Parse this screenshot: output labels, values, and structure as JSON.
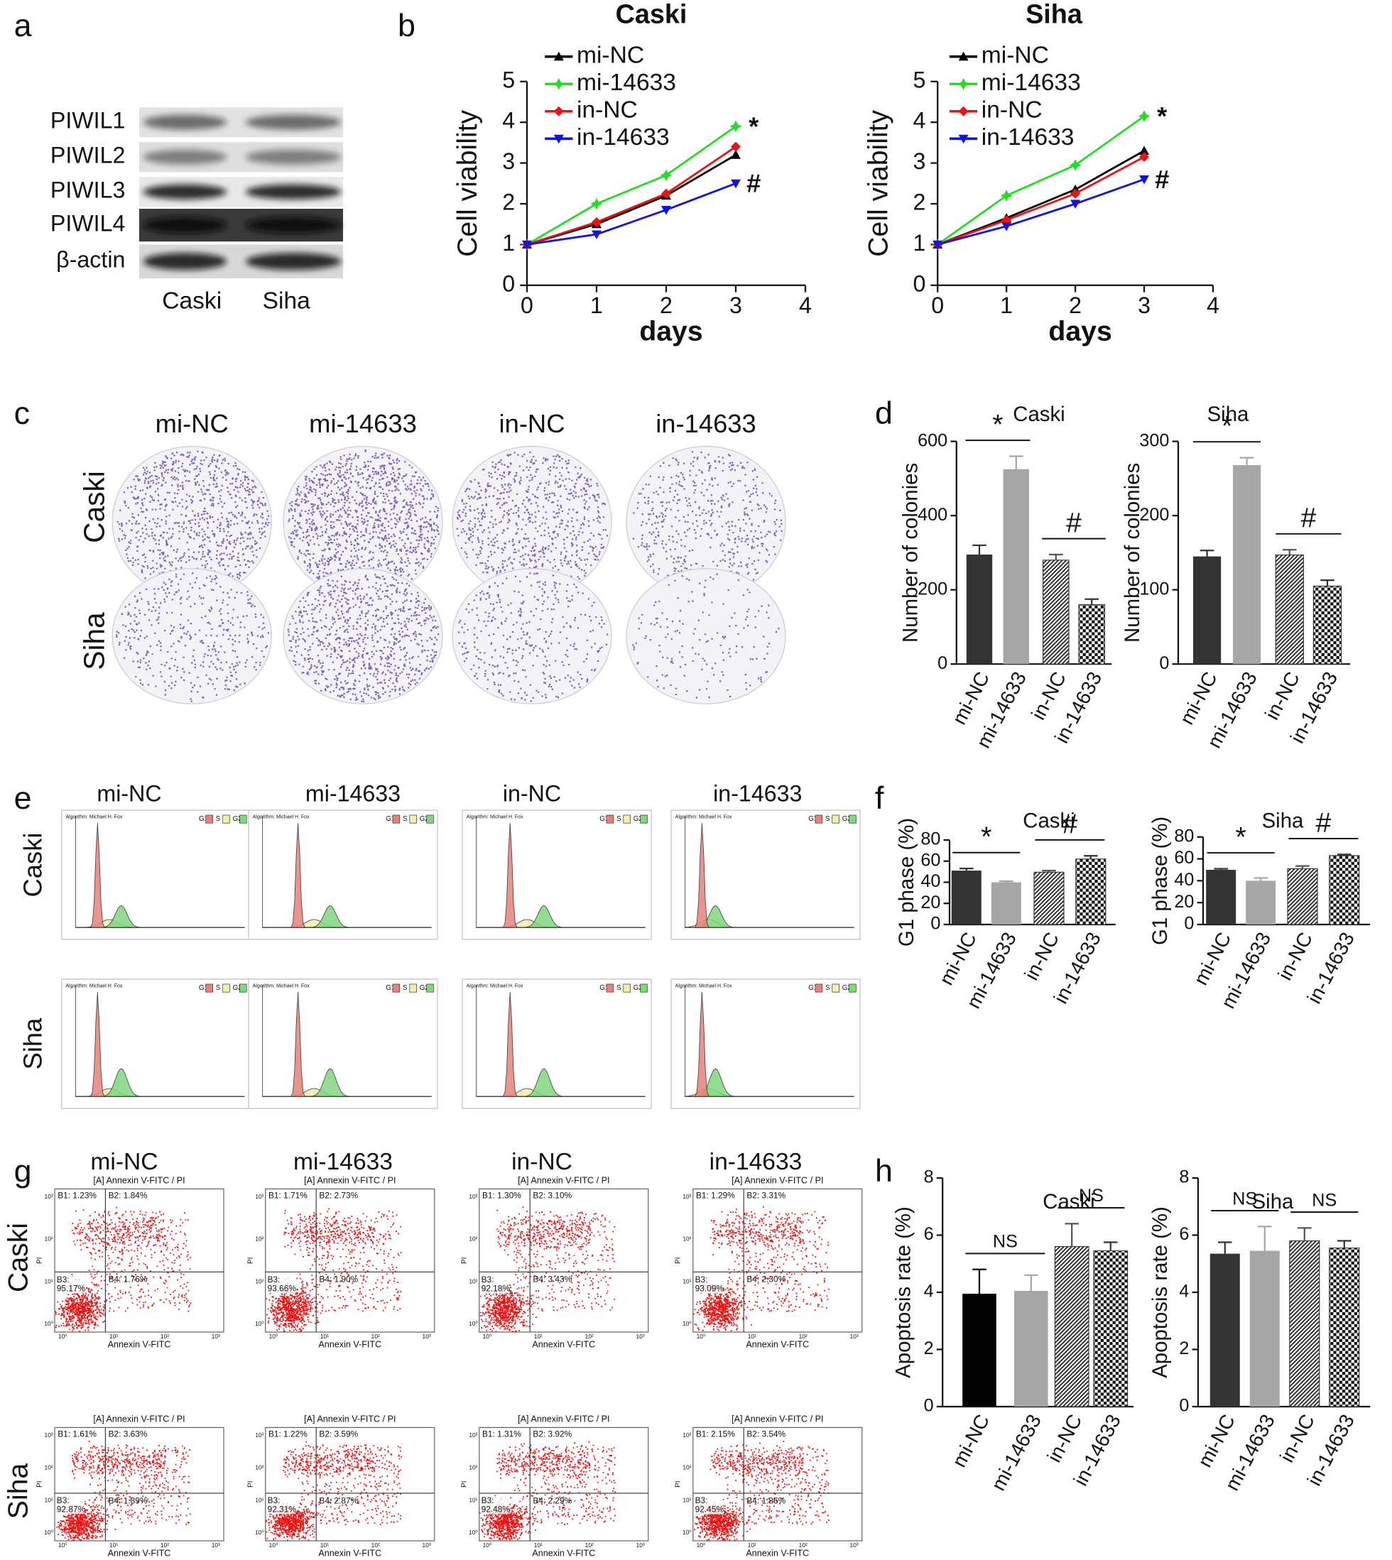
{
  "figure": {
    "panel_labels": [
      "a",
      "b",
      "c",
      "d",
      "e",
      "f",
      "g",
      "h"
    ],
    "western_blot": {
      "proteins": [
        "PIWIL1",
        "PIWIL2",
        "PIWIL3",
        "PIWIL4",
        "β-actin"
      ],
      "lanes": [
        "Caski",
        "Siha"
      ]
    },
    "colony_images": {
      "columns": [
        "mi-NC",
        "mi-14633",
        "in-NC",
        "in-14633"
      ],
      "rows": [
        "Caski",
        "Siha"
      ]
    },
    "cell_cycle_histograms": {
      "columns": [
        "mi-NC",
        "mi-14633",
        "in-NC",
        "in-14633"
      ],
      "rows": [
        "Caski",
        "Siha"
      ],
      "algorithm": "Algorithm: Michael H. Fox",
      "legend": [
        "G1",
        "S",
        "G2"
      ]
    },
    "apoptosis_plots": {
      "columns": [
        "mi-NC",
        "mi-14633",
        "in-NC",
        "in-14633"
      ],
      "rows": [
        "Caski",
        "Siha"
      ],
      "title": "[A] Annexin V-FITC / PI",
      "x_label": "Annexin V-FITC",
      "y_label": "PI",
      "axis_ticks": [
        "10⁰",
        "10¹",
        "10²",
        "10³"
      ],
      "quadrants": [
        [
          [
            "B1: 1.23%",
            "B2: 1.84%",
            "B3: 95.17%",
            "B4: 1.76%"
          ],
          [
            "B1: 1.71%",
            "B2: 2.73%",
            "B3: 93.66%",
            "B4: 1.90%"
          ],
          [
            "B1: 1.30%",
            "B2: 3.10%",
            "B3: 92.18%",
            "B4: 3.43%"
          ],
          [
            "B1: 1.29%",
            "B2: 3.31%",
            "B3: 93.09%",
            "B4: 2.30%"
          ]
        ],
        [
          [
            "B1: 1.61%",
            "B2: 3.63%",
            "B3: 92.87%",
            "B4: 1.89%"
          ],
          [
            "B1: 1.22%",
            "B2: 3.59%",
            "B3: 92.31%",
            "B4: 2.87%"
          ],
          [
            "B1: 1.31%",
            "B2: 3.92%",
            "B3: 92.48%",
            "B4: 2.29%"
          ],
          [
            "B1: 2.15%",
            "B2: 3.54%",
            "B3: 92.45%",
            "B4: 1.86%"
          ]
        ]
      ]
    }
  },
  "chart_data": [
    {
      "type": "line",
      "title": "Caski",
      "x_label": "days",
      "y_label": "Cell viability",
      "x": [
        0,
        1,
        2,
        3
      ],
      "xlim": [
        0,
        4
      ],
      "xticks": [
        0,
        1,
        2,
        3,
        4
      ],
      "ylim": [
        0,
        5
      ],
      "yticks": [
        0,
        1,
        2,
        3,
        4,
        5
      ],
      "series": [
        {
          "name": "mi-NC",
          "color": "#000000",
          "marker": "triangle-up",
          "values": [
            1,
            1.5,
            2.2,
            3.2
          ]
        },
        {
          "name": "mi-14633",
          "color": "#22dd22",
          "marker": "star",
          "values": [
            1,
            2,
            2.7,
            3.9
          ]
        },
        {
          "name": "in-NC",
          "color": "#ee1111",
          "marker": "diamond",
          "values": [
            1,
            1.55,
            2.25,
            3.4
          ]
        },
        {
          "name": "in-14633",
          "color": "#1111ee",
          "marker": "triangle-down",
          "values": [
            1,
            1.25,
            1.85,
            2.5
          ]
        }
      ],
      "annotations": [
        "*",
        "#"
      ]
    },
    {
      "type": "line",
      "title": "Siha",
      "x_label": "days",
      "y_label": "Cell viability",
      "x": [
        0,
        1,
        2,
        3
      ],
      "xlim": [
        0,
        4
      ],
      "xticks": [
        0,
        1,
        2,
        3,
        4
      ],
      "ylim": [
        0,
        5
      ],
      "yticks": [
        0,
        1,
        2,
        3,
        4,
        5
      ],
      "series": [
        {
          "name": "mi-NC",
          "color": "#000000",
          "marker": "triangle-up",
          "values": [
            1,
            1.65,
            2.35,
            3.3
          ]
        },
        {
          "name": "mi-14633",
          "color": "#22dd22",
          "marker": "star",
          "values": [
            1,
            2.2,
            2.95,
            4.15
          ]
        },
        {
          "name": "in-NC",
          "color": "#ee1111",
          "marker": "diamond",
          "values": [
            1,
            1.6,
            2.25,
            3.15
          ]
        },
        {
          "name": "in-14633",
          "color": "#1111ee",
          "marker": "triangle-down",
          "values": [
            1,
            1.45,
            2.0,
            2.6
          ]
        }
      ],
      "annotations": [
        "*",
        "#"
      ]
    },
    {
      "type": "bar",
      "title": "Caski",
      "y_label": "Number of colonies",
      "categories": [
        "mi-NC",
        "mi-14633",
        "in-NC",
        "in-14633"
      ],
      "values": [
        295,
        525,
        280,
        160
      ],
      "errors": [
        25,
        35,
        15,
        15
      ],
      "ylim": [
        0,
        600
      ],
      "yticks": [
        0,
        200,
        400,
        600
      ],
      "colors": [
        "#333333",
        "#a6a6a6",
        "#555555",
        "#333333"
      ],
      "patterns": [
        "solid",
        "solid",
        "hatch",
        "checker"
      ],
      "annotations": [
        "*",
        "#"
      ]
    },
    {
      "type": "bar",
      "title": "Siha",
      "y_label": "Number of colonies",
      "categories": [
        "mi-NC",
        "mi-14633",
        "in-NC",
        "in-14633"
      ],
      "values": [
        145,
        268,
        147,
        105
      ],
      "errors": [
        8,
        10,
        7,
        8
      ],
      "ylim": [
        0,
        300
      ],
      "yticks": [
        0,
        100,
        200,
        300
      ],
      "colors": [
        "#333333",
        "#a6a6a6",
        "#555555",
        "#333333"
      ],
      "patterns": [
        "solid",
        "solid",
        "hatch",
        "checker"
      ],
      "annotations": [
        "*",
        "#"
      ]
    },
    {
      "type": "bar",
      "title": "Caski",
      "y_label": "G1 phase (%)",
      "categories": [
        "mi-NC",
        "mi-14633",
        "in-NC",
        "in-14633"
      ],
      "values": [
        51,
        40,
        49.5,
        62
      ],
      "errors": [
        2,
        1,
        1.5,
        3
      ],
      "ylim": [
        0,
        80
      ],
      "yticks": [
        0,
        20,
        40,
        60,
        80
      ],
      "colors": [
        "#333333",
        "#a6a6a6",
        "#555555",
        "#333333"
      ],
      "patterns": [
        "solid",
        "solid",
        "hatch",
        "checker"
      ],
      "annotations": [
        "*",
        "#"
      ]
    },
    {
      "type": "bar",
      "title": "Siha",
      "y_label": "G1 phase (%)",
      "categories": [
        "mi-NC",
        "mi-14633",
        "in-NC",
        "in-14633"
      ],
      "values": [
        50,
        40,
        51,
        63
      ],
      "errors": [
        1,
        2.5,
        2.5,
        1
      ],
      "ylim": [
        0,
        80
      ],
      "yticks": [
        0,
        20,
        40,
        60,
        80
      ],
      "colors": [
        "#333333",
        "#a6a6a6",
        "#555555",
        "#333333"
      ],
      "patterns": [
        "solid",
        "solid",
        "hatch",
        "checker"
      ],
      "annotations": [
        "*",
        "#"
      ]
    },
    {
      "type": "bar",
      "title": "Caski",
      "y_label": "Apoptosis rate (%)",
      "categories": [
        "mi-NC",
        "mi-14633",
        "in-NC",
        "in-14633"
      ],
      "values": [
        3.95,
        4.05,
        5.6,
        5.45
      ],
      "errors": [
        0.85,
        0.55,
        0.8,
        0.3
      ],
      "ylim": [
        0,
        8
      ],
      "yticks": [
        0,
        2,
        4,
        6,
        8
      ],
      "colors": [
        "#000000",
        "#a6a6a6",
        "#555555",
        "#333333"
      ],
      "patterns": [
        "solid",
        "solid",
        "hatch",
        "checker"
      ],
      "annotations": [
        "NS",
        "NS"
      ]
    },
    {
      "type": "bar",
      "title": "Siha",
      "y_label": "Apoptosis rate (%)",
      "categories": [
        "mi-NC",
        "mi-14633",
        "in-NC",
        "in-14633"
      ],
      "values": [
        5.35,
        5.45,
        5.8,
        5.55
      ],
      "errors": [
        0.4,
        0.85,
        0.45,
        0.25
      ],
      "ylim": [
        0,
        8
      ],
      "yticks": [
        0,
        2,
        4,
        6,
        8
      ],
      "colors": [
        "#333333",
        "#a6a6a6",
        "#555555",
        "#333333"
      ],
      "patterns": [
        "solid",
        "solid",
        "hatch",
        "checker"
      ],
      "annotations": [
        "NS",
        "NS"
      ]
    }
  ]
}
